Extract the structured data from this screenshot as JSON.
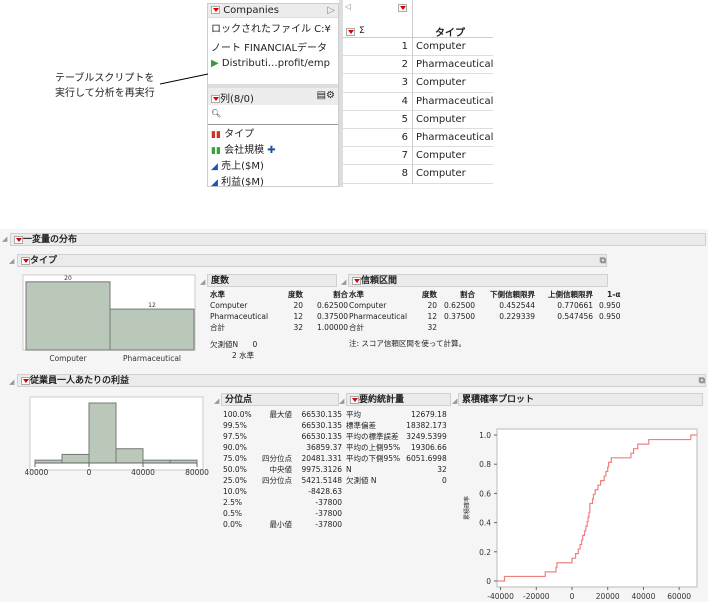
{
  "table_panel": {
    "title": "Companies",
    "scripts": [
      "ロックされたファイル  C:¥",
      "ノート  FINANCIALデータ",
      "Distributi…profit/emp"
    ],
    "columns_header": "列(8/0)",
    "columns": [
      {
        "name": "タイプ",
        "icon": "nominal-bar-icon",
        "color": "#d03020"
      },
      {
        "name": "会社規模",
        "icon": "ordinal-bar-icon",
        "color": "#3aa040"
      },
      {
        "name": "売上($M)",
        "icon": "continuous-triangle-icon",
        "color": "#2050c0"
      },
      {
        "name": "利益($M)",
        "icon": "continuous-triangle-icon",
        "color": "#2050c0"
      }
    ],
    "grid_header": "タイプ",
    "sigma": "Σ",
    "rows": [
      {
        "n": "1",
        "v": "Computer"
      },
      {
        "n": "2",
        "v": "Pharmaceutical"
      },
      {
        "n": "3",
        "v": "Computer"
      },
      {
        "n": "4",
        "v": "Pharmaceutical"
      },
      {
        "n": "5",
        "v": "Computer"
      },
      {
        "n": "6",
        "v": "Pharmaceutical"
      },
      {
        "n": "7",
        "v": "Computer"
      },
      {
        "n": "8",
        "v": "Computer"
      }
    ]
  },
  "callout": "テーブルスクリプトを\n実行して分析を再実行",
  "report": {
    "title": "一変量の分布",
    "type_section": {
      "title": "タイプ",
      "freq_title": "度数",
      "freq_headers": [
        "水準",
        "度数",
        "割合"
      ],
      "freq_rows": [
        [
          "Computer",
          "20",
          "0.62500"
        ],
        [
          "Pharmaceutical",
          "12",
          "0.37500"
        ],
        [
          "合計",
          "32",
          "1.00000"
        ]
      ],
      "missing_label": "欠測値N",
      "missing": "0",
      "levels": "2 水準",
      "ci_title": "信頼区間",
      "ci_headers": [
        "水準",
        "度数",
        "割合",
        "下側信頼限界",
        "上側信頼限界",
        "1-α"
      ],
      "ci_rows": [
        [
          "Computer",
          "20",
          "0.62500",
          "0.452544",
          "0.770661",
          "0.950"
        ],
        [
          "Pharmaceutical",
          "12",
          "0.37500",
          "0.229339",
          "0.547456",
          "0.950"
        ],
        [
          "合計",
          "32",
          "",
          "",
          "",
          ""
        ]
      ],
      "ci_note": "注: スコア信頼区間を使って計算。"
    },
    "profit_section": {
      "title": "従業員一人あたりの利益",
      "quant_title": "分位点",
      "quantiles": [
        [
          "100.0%",
          "最大値",
          "66530.135"
        ],
        [
          "99.5%",
          "",
          "66530.135"
        ],
        [
          "97.5%",
          "",
          "66530.135"
        ],
        [
          "90.0%",
          "",
          "36859.37"
        ],
        [
          "75.0%",
          "四分位点",
          "20481.331"
        ],
        [
          "50.0%",
          "中央値",
          "9975.3126"
        ],
        [
          "25.0%",
          "四分位点",
          "5421.5148"
        ],
        [
          "10.0%",
          "",
          "-8428.63"
        ],
        [
          "2.5%",
          "",
          "-37800"
        ],
        [
          "0.5%",
          "",
          "-37800"
        ],
        [
          "0.0%",
          "最小値",
          "-37800"
        ]
      ],
      "summary_title": "要約統計量",
      "summary": [
        [
          "平均",
          "12679.18"
        ],
        [
          "標準偏差",
          "18382.173"
        ],
        [
          "平均の標準誤差",
          "3249.5399"
        ],
        [
          "平均の上側95%",
          "19306.66"
        ],
        [
          "平均の下側95%",
          "6051.6998"
        ],
        [
          "N",
          "32"
        ],
        [
          "欠測値 N",
          "0"
        ]
      ],
      "cdf_title": "累積確率プロット"
    }
  },
  "chart_data": [
    {
      "type": "bar",
      "categories": [
        "Computer",
        "Pharmaceutical"
      ],
      "values": [
        20,
        12
      ],
      "ylim": [
        0,
        22
      ],
      "color": "#b9c8b9"
    },
    {
      "type": "bar",
      "subtype": "histogram",
      "bin_edges": [
        -40000,
        -20000,
        0,
        20000,
        40000,
        60000,
        80000
      ],
      "values": [
        1,
        3,
        21,
        5,
        1,
        1
      ],
      "xticks": [
        "-40000",
        "0",
        "40000",
        "80000"
      ],
      "color": "#b9c8b9"
    },
    {
      "type": "line",
      "subtype": "step-cdf",
      "xlabel": "従業員一人あたりの利益",
      "ylabel": "累積確率",
      "xlim": [
        -42000,
        70000
      ],
      "ylim": [
        0,
        1.0
      ],
      "xticks": [
        "-40000",
        "-20000",
        "0",
        "20000",
        "40000",
        "60000"
      ],
      "yticks": [
        "0",
        "0.2",
        "0.4",
        "0.6",
        "0.8",
        "1.0"
      ],
      "color": "#f08080",
      "x": [
        -37800,
        -15000,
        -9000,
        -8428.63,
        0,
        2000,
        3500,
        4500,
        5421.5,
        6000,
        7000,
        7800,
        8500,
        9000,
        9500,
        9975.3,
        10000,
        11500,
        12000,
        13000,
        14500,
        16000,
        18000,
        19000,
        20000,
        20481.3,
        22000,
        33000,
        34500,
        36859.4,
        43000,
        66530.1
      ]
    }
  ]
}
